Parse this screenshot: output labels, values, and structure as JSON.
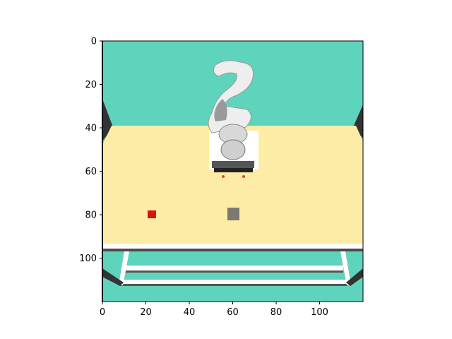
{
  "figure": {
    "x_ticks": [
      {
        "value": 0,
        "label": "0"
      },
      {
        "value": 20,
        "label": "20"
      },
      {
        "value": 40,
        "label": "40"
      },
      {
        "value": 60,
        "label": "60"
      },
      {
        "value": 80,
        "label": "80"
      },
      {
        "value": 100,
        "label": "100"
      }
    ],
    "y_ticks": [
      {
        "value": 0,
        "label": "0"
      },
      {
        "value": 20,
        "label": "20"
      },
      {
        "value": 40,
        "label": "40"
      },
      {
        "value": 60,
        "label": "60"
      },
      {
        "value": 80,
        "label": "80"
      },
      {
        "value": 100,
        "label": "100"
      }
    ],
    "x_range": [
      0,
      120
    ],
    "y_range": [
      0,
      120
    ],
    "y_inverted": true
  },
  "scene": {
    "colors": {
      "wall": "#5fd4bc",
      "table": "#fdeca6",
      "robot": "#eeeeee",
      "robot_shade": "#8a8a8a",
      "red_object": "#dd1111",
      "gray_object": "#7a7a70",
      "frame_line": "#555555"
    },
    "objects": [
      {
        "id": "red-cube",
        "x": 22.5,
        "y": 79.5,
        "label": ""
      },
      {
        "id": "gray-block",
        "x": 60.5,
        "y": 79.5,
        "label": ""
      }
    ]
  }
}
